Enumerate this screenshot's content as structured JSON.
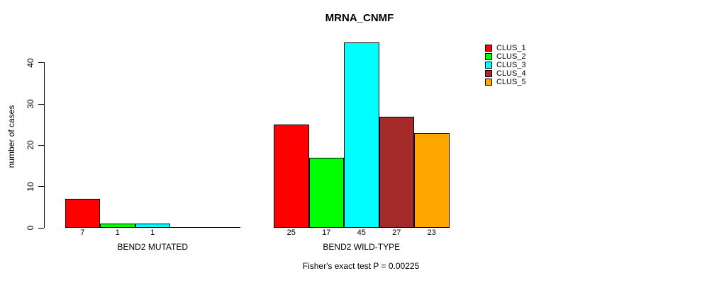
{
  "title": "MRNA_CNMF",
  "footer": "Fisher's exact test P = 0.00225",
  "y_axis": {
    "label": "number of cases",
    "ticks": [
      "0",
      "10",
      "20",
      "30",
      "40"
    ]
  },
  "chart_data": {
    "type": "bar",
    "title": "MRNA_CNMF",
    "xlabel": "",
    "ylabel": "number of cases",
    "ylim": [
      0,
      45
    ],
    "yticks": [
      0,
      10,
      20,
      30,
      40
    ],
    "grid": false,
    "legend_position": "top-right",
    "series": [
      "CLUS_1",
      "CLUS_2",
      "CLUS_3",
      "CLUS_4",
      "CLUS_5"
    ],
    "series_colors": [
      "#FF0000",
      "#00FF00",
      "#00FFFF",
      "#A52A2A",
      "#FFA500"
    ],
    "groups": [
      {
        "label": "BEND2 MUTATED",
        "values": [
          7,
          1,
          1,
          0,
          0
        ],
        "bar_labels": [
          "7",
          "1",
          "1",
          "",
          ""
        ]
      },
      {
        "label": "BEND2 WILD-TYPE",
        "values": [
          25,
          17,
          45,
          27,
          23
        ],
        "bar_labels": [
          "25",
          "17",
          "45",
          "27",
          "23"
        ]
      }
    ],
    "annotation": "Fisher's exact test P = 0.00225"
  }
}
